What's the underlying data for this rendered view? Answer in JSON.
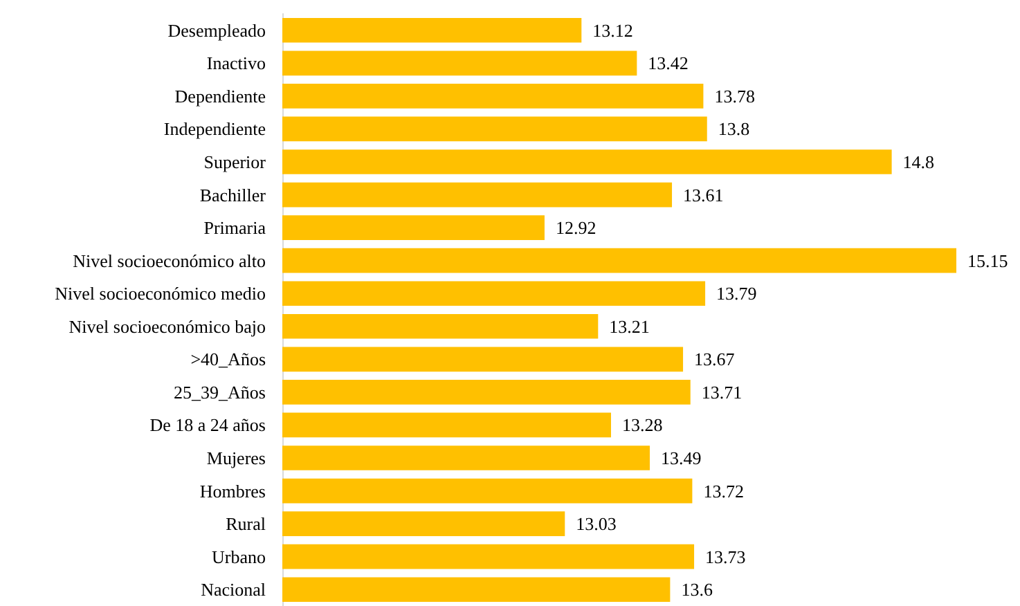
{
  "chart_data": {
    "type": "bar",
    "orientation": "horizontal",
    "color": "#ffc000",
    "data_labels": true,
    "tick_labels": "y",
    "xlim": [
      11.5,
      15.15
    ],
    "categories": [
      "Desempleado",
      "Inactivo",
      "Dependiente",
      "Independiente",
      "Superior",
      "Bachiller",
      "Primaria",
      "Nivel socioeconómico alto",
      "Nivel socioeconómico medio",
      "Nivel socioeconómico bajo",
      ">40_Años",
      "25_39_Años",
      "De 18 a 24 años",
      "Mujeres",
      "Hombres",
      "Rural",
      "Urbano",
      "Nacional"
    ],
    "values": [
      13.12,
      13.42,
      13.78,
      13.8,
      14.8,
      13.61,
      12.92,
      15.15,
      13.79,
      13.21,
      13.67,
      13.71,
      13.28,
      13.49,
      13.72,
      13.03,
      13.73,
      13.6
    ]
  }
}
